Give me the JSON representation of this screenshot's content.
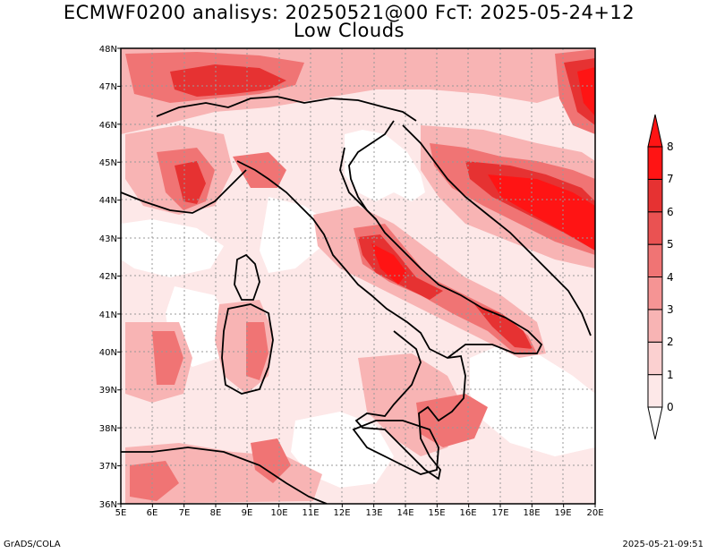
{
  "header": {
    "title_line1": "ECMWF0200 analisys: 20250521@00 FcT: 2025-05-24+12",
    "title_line2": "Low Clouds"
  },
  "footer": {
    "left": "GrADS/COLA",
    "right": "2025-05-21-09:51"
  },
  "map": {
    "lat_labels": [
      "48N",
      "47N",
      "46N",
      "45N",
      "44N",
      "43N",
      "42N",
      "41N",
      "40N",
      "39N",
      "38N",
      "37N",
      "36N"
    ],
    "lon_labels": [
      "5E",
      "6E",
      "7E",
      "8E",
      "9E",
      "10E",
      "11E",
      "12E",
      "13E",
      "14E",
      "15E",
      "16E",
      "17E",
      "18E",
      "19E",
      "20E"
    ],
    "lat_range": [
      36,
      48
    ],
    "lon_range": [
      5,
      20
    ],
    "grid": "dotted"
  },
  "colorbar": {
    "levels": [
      "0",
      "1",
      "2",
      "3",
      "4",
      "5",
      "6",
      "7",
      "8"
    ],
    "colors": [
      "#fde8e8",
      "#fbd0d0",
      "#f8b4b4",
      "#f59494",
      "#f07474",
      "#ea5252",
      "#e63232",
      "#ff1414"
    ]
  },
  "palette": {
    "background": "#ffffff",
    "sea_none": "#ffffff",
    "lowest": "#fde8e8",
    "highest": "#ff1414"
  }
}
